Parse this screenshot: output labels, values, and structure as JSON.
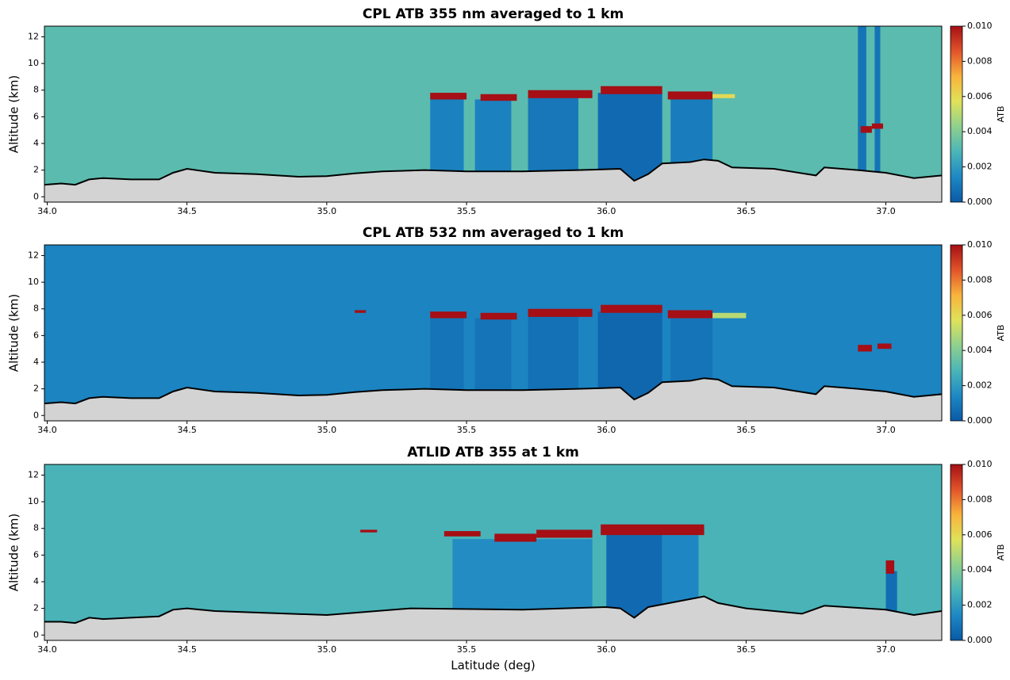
{
  "chart_data": [
    {
      "type": "curtain",
      "title": "CPL ATB 355 nm averaged to 1 km",
      "ylabel": "Altitude (km)",
      "colorbar_label": "ATB",
      "xlim": [
        33.99,
        37.2
      ],
      "ylim": [
        -0.4,
        12.8
      ],
      "xticks": [
        {
          "value": 34,
          "label": "34.0"
        },
        {
          "value": 34.5,
          "label": "34.5"
        },
        {
          "value": 35,
          "label": "35.0"
        },
        {
          "value": 35.5,
          "label": "35.5"
        },
        {
          "value": 36,
          "label": "36.0"
        },
        {
          "value": 36.5,
          "label": "36.5"
        },
        {
          "value": 37,
          "label": "37.0"
        }
      ],
      "yticks": [
        0,
        2,
        4,
        6,
        8,
        10,
        12
      ],
      "clim": [
        0,
        0.01
      ],
      "cticks": [
        {
          "value": 0,
          "label": "0.000"
        },
        {
          "value": 0.002,
          "label": "0.002"
        },
        {
          "value": 0.004,
          "label": "0.004"
        },
        {
          "value": 0.006,
          "label": "0.006"
        },
        {
          "value": 0.008,
          "label": "0.008"
        },
        {
          "value": 0.01,
          "label": "0.010"
        }
      ],
      "colormap": [
        "#0a5aa6",
        "#1e88c4",
        "#4bb5b8",
        "#8ed08e",
        "#dfe25a",
        "#f8b33c",
        "#e2542a",
        "#a50f15"
      ],
      "background_atb": 0.0032,
      "cells": [
        {
          "lat": [
            35.37,
            35.49
          ],
          "alt": [
            1.5,
            7.4
          ],
          "atb": 0.0012
        },
        {
          "lat": [
            35.53,
            35.66
          ],
          "alt": [
            1.5,
            7.3
          ],
          "atb": 0.0012
        },
        {
          "lat": [
            35.72,
            35.9
          ],
          "alt": [
            1.5,
            7.5
          ],
          "atb": 0.0009
        },
        {
          "lat": [
            35.97,
            36.2
          ],
          "alt": [
            1.0,
            7.8
          ],
          "atb": 0.0005
        },
        {
          "lat": [
            36.23,
            36.38
          ],
          "alt": [
            1.5,
            7.4
          ],
          "atb": 0.0011
        },
        {
          "lat": [
            36.9,
            36.93
          ],
          "alt": [
            1.5,
            12.8
          ],
          "atb": 0.0008
        },
        {
          "lat": [
            36.96,
            36.98
          ],
          "alt": [
            1.5,
            12.8
          ],
          "atb": 0.0008
        },
        {
          "lat": [
            35.37,
            35.5
          ],
          "alt": [
            7.3,
            7.8
          ],
          "atb": 0.01
        },
        {
          "lat": [
            35.55,
            35.68
          ],
          "alt": [
            7.2,
            7.7
          ],
          "atb": 0.01
        },
        {
          "lat": [
            35.72,
            35.95
          ],
          "alt": [
            7.4,
            8.0
          ],
          "atb": 0.01
        },
        {
          "lat": [
            35.98,
            36.2
          ],
          "alt": [
            7.7,
            8.3
          ],
          "atb": 0.01
        },
        {
          "lat": [
            36.22,
            36.38
          ],
          "alt": [
            7.3,
            7.9
          ],
          "atb": 0.01
        },
        {
          "lat": [
            36.38,
            36.46
          ],
          "alt": [
            7.4,
            7.7
          ],
          "atb": 0.006
        },
        {
          "lat": [
            36.91,
            36.95
          ],
          "alt": [
            4.8,
            5.3
          ],
          "atb": 0.01
        },
        {
          "lat": [
            36.95,
            36.99
          ],
          "alt": [
            5.1,
            5.5
          ],
          "atb": 0.01
        }
      ],
      "surface": {
        "lat": [
          33.99,
          34.05,
          34.1,
          34.15,
          34.2,
          34.3,
          34.4,
          34.45,
          34.5,
          34.6,
          34.75,
          34.9,
          35.0,
          35.1,
          35.2,
          35.35,
          35.5,
          35.7,
          35.9,
          36.05,
          36.1,
          36.15,
          36.2,
          36.3,
          36.35,
          36.4,
          36.45,
          36.6,
          36.75,
          36.78,
          36.9,
          37.0,
          37.1,
          37.2
        ],
        "alt": [
          0.9,
          1.0,
          0.9,
          1.3,
          1.4,
          1.3,
          1.3,
          1.8,
          2.1,
          1.8,
          1.7,
          1.5,
          1.55,
          1.75,
          1.9,
          2.0,
          1.9,
          1.9,
          2.0,
          2.1,
          1.2,
          1.7,
          2.5,
          2.6,
          2.8,
          2.7,
          2.2,
          2.1,
          1.6,
          2.2,
          2.0,
          1.8,
          1.4,
          1.6
        ]
      }
    },
    {
      "type": "curtain",
      "title": "CPL ATB 532 nm averaged to 1 km",
      "ylabel": "Altitude (km)",
      "colorbar_label": "ATB",
      "xlim": [
        33.99,
        37.2
      ],
      "ylim": [
        -0.4,
        12.8
      ],
      "xticks": [
        {
          "value": 34,
          "label": "34.0"
        },
        {
          "value": 34.5,
          "label": "34.5"
        },
        {
          "value": 35,
          "label": "35.0"
        },
        {
          "value": 35.5,
          "label": "35.5"
        },
        {
          "value": 36,
          "label": "36.0"
        },
        {
          "value": 36.5,
          "label": "36.5"
        },
        {
          "value": 37,
          "label": "37.0"
        }
      ],
      "yticks": [
        0,
        2,
        4,
        6,
        8,
        10,
        12
      ],
      "clim": [
        0,
        0.01
      ],
      "cticks": [
        {
          "value": 0,
          "label": "0.000"
        },
        {
          "value": 0.002,
          "label": "0.002"
        },
        {
          "value": 0.004,
          "label": "0.004"
        },
        {
          "value": 0.006,
          "label": "0.006"
        },
        {
          "value": 0.008,
          "label": "0.008"
        },
        {
          "value": 0.01,
          "label": "0.010"
        }
      ],
      "colormap": [
        "#0a5aa6",
        "#1e88c4",
        "#4bb5b8",
        "#8ed08e",
        "#dfe25a",
        "#f8b33c",
        "#e2542a",
        "#a50f15"
      ],
      "background_atb": 0.0013,
      "cells": [
        {
          "lat": [
            35.37,
            35.49
          ],
          "alt": [
            1.5,
            7.4
          ],
          "atb": 0.0008
        },
        {
          "lat": [
            35.53,
            35.66
          ],
          "alt": [
            1.5,
            7.3
          ],
          "atb": 0.0008
        },
        {
          "lat": [
            35.72,
            35.9
          ],
          "alt": [
            1.5,
            7.5
          ],
          "atb": 0.0007
        },
        {
          "lat": [
            35.97,
            36.2
          ],
          "alt": [
            1.0,
            7.8
          ],
          "atb": 0.0004
        },
        {
          "lat": [
            36.23,
            36.38
          ],
          "alt": [
            1.5,
            7.4
          ],
          "atb": 0.0008
        },
        {
          "lat": [
            35.1,
            35.14
          ],
          "alt": [
            7.7,
            7.9
          ],
          "atb": 0.01
        },
        {
          "lat": [
            35.37,
            35.5
          ],
          "alt": [
            7.3,
            7.8
          ],
          "atb": 0.01
        },
        {
          "lat": [
            35.55,
            35.68
          ],
          "alt": [
            7.2,
            7.7
          ],
          "atb": 0.01
        },
        {
          "lat": [
            35.72,
            35.95
          ],
          "alt": [
            7.4,
            8.0
          ],
          "atb": 0.01
        },
        {
          "lat": [
            35.98,
            36.2
          ],
          "alt": [
            7.7,
            8.3
          ],
          "atb": 0.01
        },
        {
          "lat": [
            36.22,
            36.38
          ],
          "alt": [
            7.3,
            7.9
          ],
          "atb": 0.01
        },
        {
          "lat": [
            36.38,
            36.5
          ],
          "alt": [
            7.3,
            7.7
          ],
          "atb": 0.005
        },
        {
          "lat": [
            36.9,
            36.95
          ],
          "alt": [
            4.8,
            5.3
          ],
          "atb": 0.01
        },
        {
          "lat": [
            36.97,
            37.02
          ],
          "alt": [
            5.0,
            5.4
          ],
          "atb": 0.01
        }
      ],
      "surface": {
        "lat": [
          33.99,
          34.05,
          34.1,
          34.15,
          34.2,
          34.3,
          34.4,
          34.45,
          34.5,
          34.6,
          34.75,
          34.9,
          35.0,
          35.1,
          35.2,
          35.35,
          35.5,
          35.7,
          35.9,
          36.05,
          36.1,
          36.15,
          36.2,
          36.3,
          36.35,
          36.4,
          36.45,
          36.6,
          36.75,
          36.78,
          36.9,
          37.0,
          37.1,
          37.2
        ],
        "alt": [
          0.9,
          1.0,
          0.9,
          1.3,
          1.4,
          1.3,
          1.3,
          1.8,
          2.1,
          1.8,
          1.7,
          1.5,
          1.55,
          1.75,
          1.9,
          2.0,
          1.9,
          1.9,
          2.0,
          2.1,
          1.2,
          1.7,
          2.5,
          2.6,
          2.8,
          2.7,
          2.2,
          2.1,
          1.6,
          2.2,
          2.0,
          1.8,
          1.4,
          1.6
        ]
      }
    },
    {
      "type": "curtain",
      "title": "ATLID ATB 355 at 1 km",
      "ylabel": "Altitude (km)",
      "xlabel": "Latitude (deg)",
      "colorbar_label": "ATB",
      "xlim": [
        33.99,
        37.2
      ],
      "ylim": [
        -0.4,
        12.8
      ],
      "xticks": [
        {
          "value": 34,
          "label": "34.0"
        },
        {
          "value": 34.5,
          "label": "34.5"
        },
        {
          "value": 35,
          "label": "35.0"
        },
        {
          "value": 35.5,
          "label": "35.5"
        },
        {
          "value": 36,
          "label": "36.0"
        },
        {
          "value": 36.5,
          "label": "36.5"
        },
        {
          "value": 37,
          "label": "37.0"
        }
      ],
      "yticks": [
        0,
        2,
        4,
        6,
        8,
        10,
        12
      ],
      "clim": [
        0,
        0.01
      ],
      "cticks": [
        {
          "value": 0,
          "label": "0.000"
        },
        {
          "value": 0.002,
          "label": "0.002"
        },
        {
          "value": 0.004,
          "label": "0.004"
        },
        {
          "value": 0.006,
          "label": "0.006"
        },
        {
          "value": 0.008,
          "label": "0.008"
        },
        {
          "value": 0.01,
          "label": "0.010"
        }
      ],
      "colormap": [
        "#0a5aa6",
        "#1e88c4",
        "#4bb5b8",
        "#8ed08e",
        "#dfe25a",
        "#f8b33c",
        "#e2542a",
        "#a50f15"
      ],
      "background_atb": 0.0028,
      "cells": [
        {
          "lat": [
            35.45,
            35.95
          ],
          "alt": [
            1.5,
            7.2
          ],
          "atb": 0.0016
        },
        {
          "lat": [
            36.0,
            36.2
          ],
          "alt": [
            1.0,
            7.6
          ],
          "atb": 0.0005
        },
        {
          "lat": [
            36.2,
            36.33
          ],
          "alt": [
            1.5,
            7.5
          ],
          "atb": 0.0014
        },
        {
          "lat": [
            37.0,
            37.04
          ],
          "alt": [
            1.5,
            4.8
          ],
          "atb": 0.0006
        },
        {
          "lat": [
            35.12,
            35.18
          ],
          "alt": [
            7.7,
            7.9
          ],
          "atb": 0.01
        },
        {
          "lat": [
            35.42,
            35.55
          ],
          "alt": [
            7.4,
            7.8
          ],
          "atb": 0.01
        },
        {
          "lat": [
            35.6,
            35.75
          ],
          "alt": [
            7.0,
            7.6
          ],
          "atb": 0.01
        },
        {
          "lat": [
            35.75,
            35.95
          ],
          "alt": [
            7.3,
            7.9
          ],
          "atb": 0.01
        },
        {
          "lat": [
            35.98,
            36.35
          ],
          "alt": [
            7.5,
            8.3
          ],
          "atb": 0.01
        },
        {
          "lat": [
            37.0,
            37.03
          ],
          "alt": [
            4.6,
            5.6
          ],
          "atb": 0.01
        }
      ],
      "surface": {
        "lat": [
          33.99,
          34.05,
          34.1,
          34.15,
          34.2,
          34.3,
          34.4,
          34.45,
          34.5,
          34.6,
          35.0,
          35.3,
          35.7,
          36.0,
          36.05,
          36.1,
          36.15,
          36.3,
          36.35,
          36.4,
          36.5,
          36.7,
          36.78,
          37.0,
          37.1,
          37.2
        ],
        "alt": [
          1.0,
          1.0,
          0.9,
          1.3,
          1.2,
          1.3,
          1.4,
          1.9,
          2.0,
          1.8,
          1.5,
          2.0,
          1.9,
          2.1,
          2.0,
          1.3,
          2.1,
          2.7,
          2.9,
          2.4,
          2.0,
          1.6,
          2.2,
          1.9,
          1.5,
          1.8
        ]
      }
    }
  ]
}
